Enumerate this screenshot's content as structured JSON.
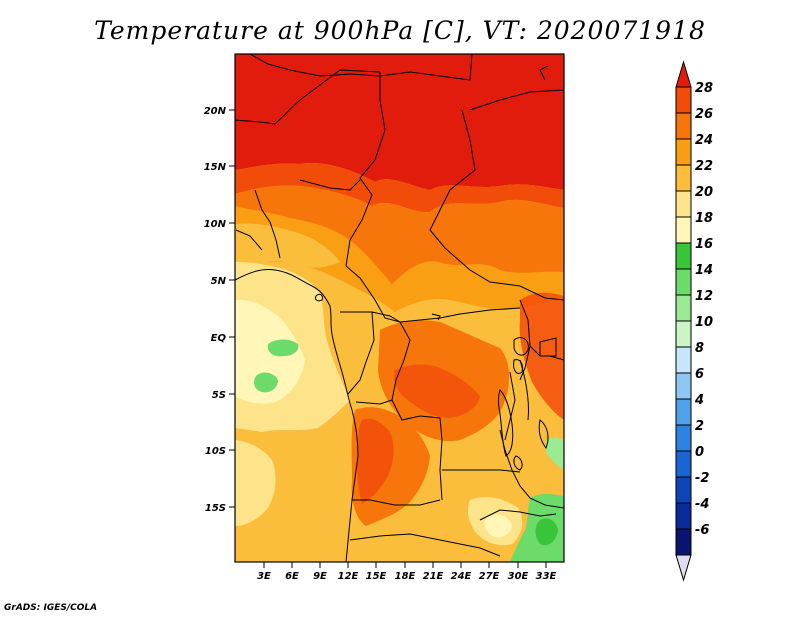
{
  "title": "Temperature at 900hPa [C], VT: 2020071918",
  "credit": "GrADS: IGES/COLA",
  "map": {
    "lat_labels": [
      "20N",
      "15N",
      "10N",
      "5N",
      "EQ",
      "5S",
      "10S",
      "15S"
    ],
    "lon_labels": [
      "3E",
      "6E",
      "9E",
      "12E",
      "15E",
      "18E",
      "21E",
      "24E",
      "27E",
      "30E",
      "33E"
    ]
  },
  "colorbar": {
    "levels": [
      "28",
      "26",
      "24",
      "22",
      "20",
      "18",
      "16",
      "14",
      "12",
      "10",
      "8",
      "6",
      "4",
      "2",
      "0",
      "-2",
      "-4",
      "-6"
    ],
    "colors": [
      "#e11c0c",
      "#f24c0a",
      "#f7760c",
      "#fa9e14",
      "#fbbd3c",
      "#fde48a",
      "#fff6b8",
      "#39c43a",
      "#6ddb6a",
      "#9aea94",
      "#c9f6c4",
      "#c6e6fb",
      "#8ec7f4",
      "#4fa1e9",
      "#2c82e0",
      "#1a63d3",
      "#0f44b8",
      "#0a2a97",
      "#0a1470",
      "#e0dcf2"
    ]
  }
}
